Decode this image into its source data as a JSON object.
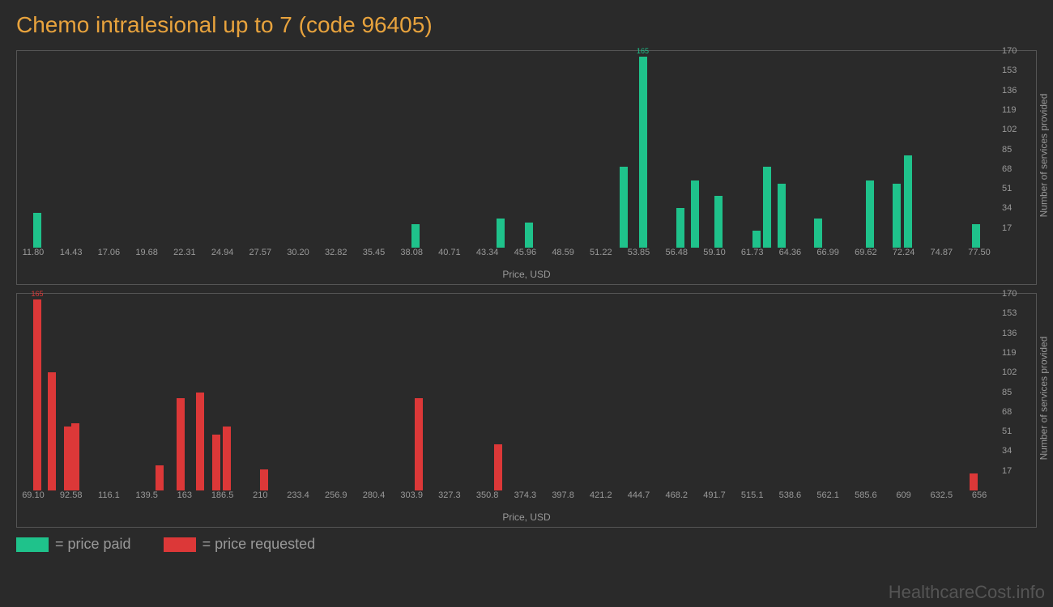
{
  "title": "Chemo intralesional up to 7 (code 96405)",
  "background_color": "#2a2a2a",
  "title_color": "#e8a33d",
  "title_fontsize": 28,
  "text_color": "#999999",
  "border_color": "#555555",
  "chart1": {
    "type": "bar",
    "color": "#1fc28b",
    "xlabel": "Price, USD",
    "ylabel": "Number of services provided",
    "xlim": [
      11.8,
      77.5
    ],
    "ylim": [
      0,
      170
    ],
    "xticks": [
      "11.80",
      "14.43",
      "17.06",
      "19.68",
      "22.31",
      "24.94",
      "27.57",
      "30.20",
      "32.82",
      "35.45",
      "38.08",
      "40.71",
      "43.34",
      "45.96",
      "48.59",
      "51.22",
      "53.85",
      "56.48",
      "59.10",
      "61.73",
      "64.36",
      "66.99",
      "69.62",
      "72.24",
      "74.87",
      "77.50"
    ],
    "yticks": [
      17,
      34,
      51,
      68,
      85,
      102,
      119,
      136,
      153,
      170
    ],
    "bars": [
      {
        "x": 11.8,
        "y": 30
      },
      {
        "x": 38.08,
        "y": 20
      },
      {
        "x": 44.0,
        "y": 25
      },
      {
        "x": 45.96,
        "y": 22
      },
      {
        "x": 52.5,
        "y": 70
      },
      {
        "x": 53.85,
        "y": 165,
        "label": "165"
      },
      {
        "x": 56.48,
        "y": 34
      },
      {
        "x": 57.5,
        "y": 58
      },
      {
        "x": 59.1,
        "y": 45
      },
      {
        "x": 61.73,
        "y": 15
      },
      {
        "x": 62.5,
        "y": 70
      },
      {
        "x": 63.5,
        "y": 55
      },
      {
        "x": 66.0,
        "y": 25
      },
      {
        "x": 69.62,
        "y": 58
      },
      {
        "x": 71.5,
        "y": 55
      },
      {
        "x": 72.24,
        "y": 80
      },
      {
        "x": 77.0,
        "y": 20
      }
    ]
  },
  "chart2": {
    "type": "bar",
    "color": "#dc3838",
    "xlabel": "Price, USD",
    "ylabel": "Number of services provided",
    "xlim": [
      69.1,
      656
    ],
    "ylim": [
      0,
      170
    ],
    "xticks": [
      "69.10",
      "92.58",
      "116.1",
      "139.5",
      "163",
      "186.5",
      "210",
      "233.4",
      "256.9",
      "280.4",
      "303.9",
      "327.3",
      "350.8",
      "374.3",
      "397.8",
      "421.2",
      "444.7",
      "468.2",
      "491.7",
      "515.1",
      "538.6",
      "562.1",
      "585.6",
      "609",
      "632.5",
      "656"
    ],
    "yticks": [
      17,
      34,
      51,
      68,
      85,
      102,
      119,
      136,
      153,
      170
    ],
    "bars": [
      {
        "x": 69.1,
        "y": 165,
        "label": "165"
      },
      {
        "x": 78,
        "y": 102
      },
      {
        "x": 88,
        "y": 55
      },
      {
        "x": 92.58,
        "y": 58
      },
      {
        "x": 145,
        "y": 22
      },
      {
        "x": 158,
        "y": 80
      },
      {
        "x": 170,
        "y": 85
      },
      {
        "x": 180,
        "y": 48
      },
      {
        "x": 186.5,
        "y": 55
      },
      {
        "x": 210,
        "y": 18
      },
      {
        "x": 306,
        "y": 80
      },
      {
        "x": 355,
        "y": 40
      },
      {
        "x": 650,
        "y": 15
      }
    ]
  },
  "legend": {
    "items": [
      {
        "color": "#1fc28b",
        "label": "= price paid"
      },
      {
        "color": "#dc3838",
        "label": "= price requested"
      }
    ]
  },
  "watermark": "HealthcareCost.info"
}
